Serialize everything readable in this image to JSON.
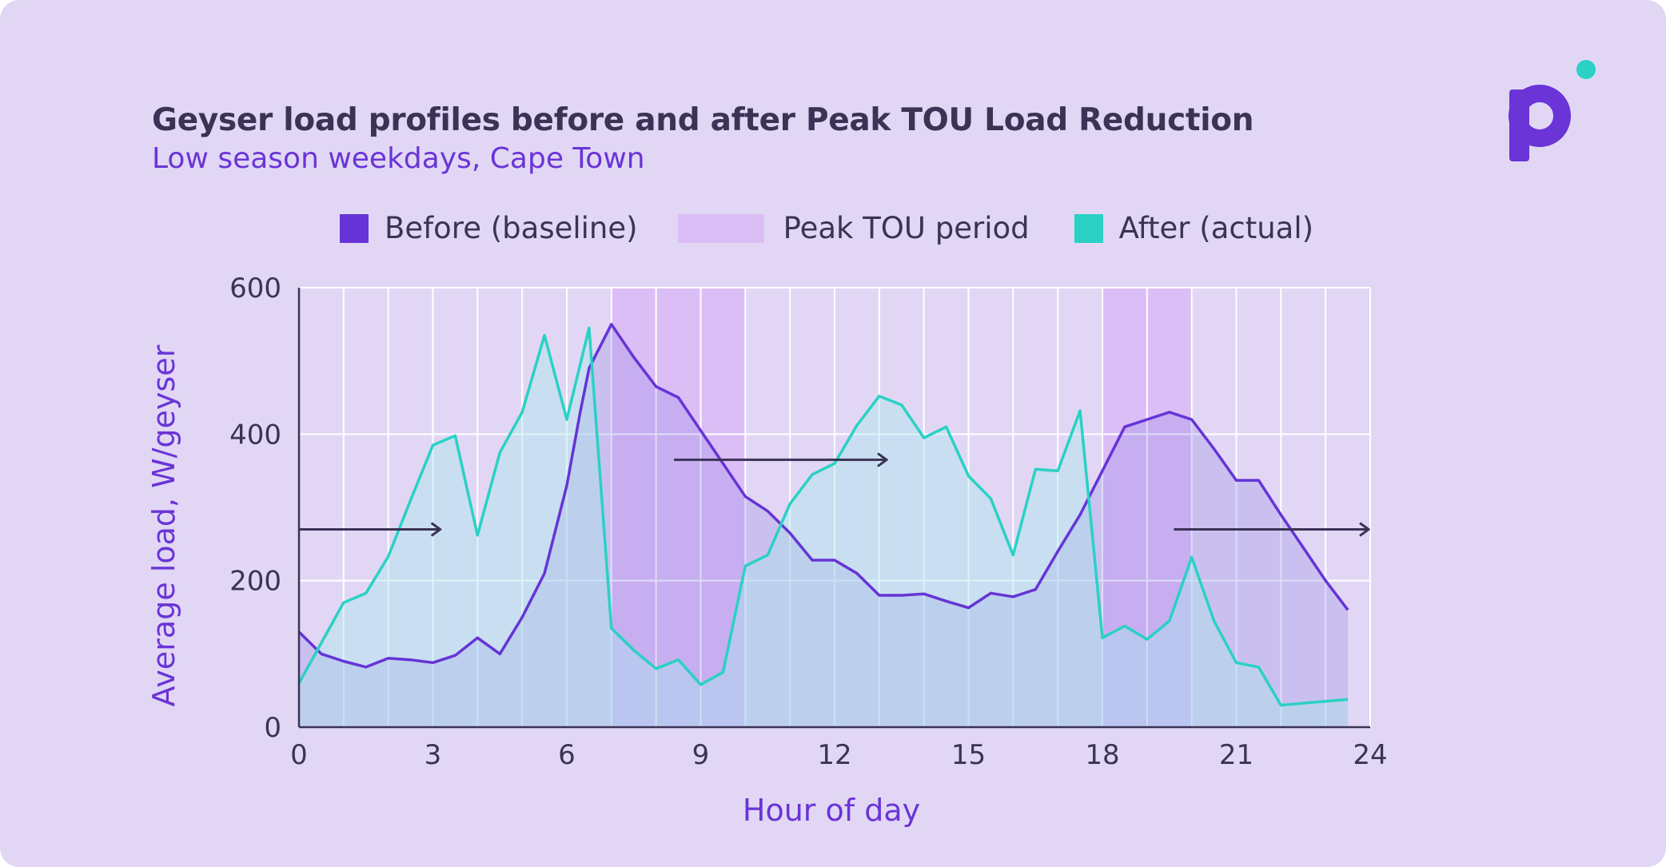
{
  "chart_data": {
    "type": "area",
    "title": "Geyser load profiles before and after Peak TOU Load Reduction",
    "subtitle": "Low season weekdays, Cape Town",
    "xlabel": "Hour of day",
    "ylabel": "Average load, W/geyser",
    "xlim": [
      0,
      24
    ],
    "ylim": [
      0,
      600
    ],
    "xticks": [
      "0",
      "3",
      "6",
      "9",
      "12",
      "15",
      "18",
      "21",
      "24"
    ],
    "yticks": [
      "0",
      "200",
      "400",
      "600"
    ],
    "grid": true,
    "legend_position": "top",
    "peak_tou_periods": [
      [
        7,
        10
      ],
      [
        18,
        20
      ]
    ],
    "shift_arrows": [
      {
        "from": 0,
        "to": 3.2,
        "y": 270
      },
      {
        "from": 8.4,
        "to": 13.2,
        "y": 365
      },
      {
        "from": 19.6,
        "to": 24,
        "y": 270
      }
    ],
    "series": [
      {
        "name": "Before (baseline)",
        "color": "#6634d6",
        "points": [
          [
            0,
            130
          ],
          [
            0.5,
            100
          ],
          [
            1,
            90
          ],
          [
            1.5,
            82
          ],
          [
            2,
            94
          ],
          [
            2.5,
            92
          ],
          [
            3,
            88
          ],
          [
            3.5,
            98
          ],
          [
            4,
            122
          ],
          [
            4.5,
            100
          ],
          [
            5,
            150
          ],
          [
            5.5,
            210
          ],
          [
            6,
            330
          ],
          [
            6.3,
            430
          ],
          [
            6.5,
            490
          ],
          [
            7,
            550
          ],
          [
            7.5,
            505
          ],
          [
            8,
            465
          ],
          [
            8.5,
            450
          ],
          [
            9,
            405
          ],
          [
            9.5,
            360
          ],
          [
            10,
            315
          ],
          [
            10.5,
            295
          ],
          [
            11,
            265
          ],
          [
            11.5,
            228
          ],
          [
            12,
            228
          ],
          [
            12.5,
            210
          ],
          [
            13,
            180
          ],
          [
            13.5,
            180
          ],
          [
            14,
            182
          ],
          [
            14.5,
            172
          ],
          [
            15,
            163
          ],
          [
            15.5,
            183
          ],
          [
            16,
            178
          ],
          [
            16.5,
            188
          ],
          [
            17,
            240
          ],
          [
            17.5,
            290
          ],
          [
            18,
            350
          ],
          [
            18.5,
            410
          ],
          [
            19,
            420
          ],
          [
            19.5,
            430
          ],
          [
            20,
            420
          ],
          [
            20.5,
            380
          ],
          [
            21,
            337
          ],
          [
            21.5,
            337
          ],
          [
            22,
            290
          ],
          [
            22.5,
            245
          ],
          [
            23,
            200
          ],
          [
            23.5,
            160
          ]
        ]
      },
      {
        "name": "After (actual)",
        "color": "#2ad1c4",
        "points": [
          [
            0,
            60
          ],
          [
            0.5,
            115
          ],
          [
            1,
            170
          ],
          [
            1.5,
            183
          ],
          [
            2,
            233
          ],
          [
            2.5,
            310
          ],
          [
            3,
            385
          ],
          [
            3.5,
            398
          ],
          [
            4,
            262
          ],
          [
            4.5,
            375
          ],
          [
            5,
            430
          ],
          [
            5.5,
            535
          ],
          [
            6,
            420
          ],
          [
            6.5,
            545
          ],
          [
            7,
            135
          ],
          [
            7.5,
            105
          ],
          [
            8,
            80
          ],
          [
            8.5,
            92
          ],
          [
            9,
            58
          ],
          [
            9.5,
            75
          ],
          [
            10,
            220
          ],
          [
            10.5,
            235
          ],
          [
            11,
            305
          ],
          [
            11.5,
            345
          ],
          [
            12,
            360
          ],
          [
            12.5,
            412
          ],
          [
            13,
            452
          ],
          [
            13.5,
            440
          ],
          [
            14,
            395
          ],
          [
            14.5,
            410
          ],
          [
            15,
            343
          ],
          [
            15.5,
            312
          ],
          [
            16,
            235
          ],
          [
            16.5,
            352
          ],
          [
            17,
            350
          ],
          [
            17.5,
            432
          ],
          [
            18,
            122
          ],
          [
            18.5,
            138
          ],
          [
            19,
            120
          ],
          [
            19.5,
            145
          ],
          [
            20,
            232
          ],
          [
            20.5,
            145
          ],
          [
            21,
            88
          ],
          [
            21.5,
            82
          ],
          [
            22,
            30
          ],
          [
            23.5,
            38
          ]
        ]
      }
    ]
  },
  "legend": [
    {
      "label": "Before (baseline)",
      "color": "#6634d6"
    },
    {
      "label": "Peak TOU period",
      "color": "#dbbdf5"
    },
    {
      "label": "After (actual)",
      "color": "#2ad1c4"
    }
  ],
  "logo": {
    "letter": "p",
    "icon": "brand-logo-icon",
    "dot_color": "#2ad1c4"
  }
}
